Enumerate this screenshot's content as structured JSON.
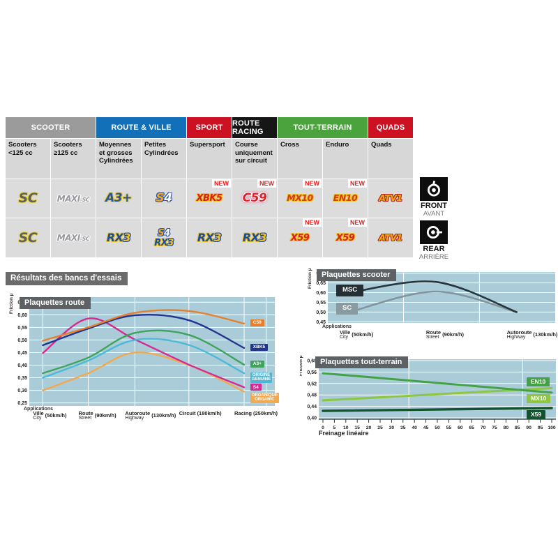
{
  "table": {
    "new_label": "NEW",
    "categories": [
      {
        "id": "scooter",
        "label": "SCOOTER",
        "color": "#9b9b9b",
        "span": 2
      },
      {
        "id": "route-ville",
        "label": "ROUTE & VILLE",
        "color": "#1170b8",
        "span": 2
      },
      {
        "id": "sport",
        "label": "SPORT",
        "color": "#cc1122",
        "span": 1
      },
      {
        "id": "route-racing",
        "label": "ROUTE RACING",
        "color": "#161616",
        "span": 1
      },
      {
        "id": "tout-terrain",
        "label": "TOUT-TERRAIN",
        "color": "#4aa33c",
        "span": 2
      },
      {
        "id": "quads",
        "label": "QUADS",
        "color": "#cc1122",
        "span": 1
      }
    ],
    "subheaders": [
      "Scooters\n<125 cc",
      "Scooters\n≥125 cc",
      "Moyennes\net grosses\nCylindrées",
      "Petites\nCylindrées",
      "Supersport",
      "Course\nuniquement\nsur circuit",
      "Cross",
      "Enduro",
      "Quads"
    ],
    "front_row": [
      {
        "new": false,
        "badges": [
          {
            "id": "sc",
            "parts": [
              {
                "t": "SC",
                "c": "p-sc"
              }
            ]
          }
        ]
      },
      {
        "new": false,
        "badges": [
          {
            "id": "maxi-sc",
            "parts": [
              {
                "t": "MAXI",
                "c": "p-maxi"
              },
              {
                "t": "-SC",
                "c": "p-maxisub"
              }
            ]
          }
        ]
      },
      {
        "new": false,
        "badges": [
          {
            "id": "a3plus",
            "parts": [
              {
                "t": "A3+",
                "c": "p-a3"
              }
            ]
          }
        ]
      },
      {
        "new": false,
        "badges": [
          {
            "id": "s4",
            "parts": [
              {
                "t": "S",
                "c": "p-s4s"
              },
              {
                "t": "4",
                "c": "p-s4n"
              }
            ]
          }
        ]
      },
      {
        "new": true,
        "badges": [
          {
            "id": "xbk5",
            "parts": [
              {
                "t": "XBK5",
                "c": "p-xbk"
              }
            ]
          }
        ]
      },
      {
        "new": true,
        "badges": [
          {
            "id": "c59",
            "parts": [
              {
                "t": "C59",
                "c": "p-c59"
              }
            ]
          }
        ]
      },
      {
        "new": true,
        "badges": [
          {
            "id": "mx10",
            "parts": [
              {
                "t": "MX10",
                "c": "p-offroad"
              }
            ]
          }
        ]
      },
      {
        "new": true,
        "badges": [
          {
            "id": "en10",
            "parts": [
              {
                "t": "EN10",
                "c": "p-offroad"
              }
            ]
          }
        ]
      },
      {
        "new": false,
        "badges": [
          {
            "id": "atv1",
            "parts": [
              {
                "t": "ATV1",
                "c": "p-atv"
              }
            ]
          }
        ]
      }
    ],
    "rear_row": [
      {
        "new": false,
        "badges": [
          {
            "id": "sc",
            "parts": [
              {
                "t": "SC",
                "c": "p-sc"
              }
            ]
          }
        ]
      },
      {
        "new": false,
        "badges": [
          {
            "id": "maxi-sc",
            "parts": [
              {
                "t": "MAXI",
                "c": "p-maxi"
              },
              {
                "t": "-SC",
                "c": "p-maxisub"
              }
            ]
          }
        ]
      },
      {
        "new": false,
        "badges": [
          {
            "id": "rx3",
            "parts": [
              {
                "t": "RX",
                "c": "p-rx"
              },
              {
                "t": "3",
                "c": "p-rx3n"
              }
            ]
          }
        ]
      },
      {
        "new": false,
        "badges": [
          {
            "id": "s4",
            "small": true,
            "parts": [
              {
                "t": "S",
                "c": "p-s4s"
              },
              {
                "t": "4",
                "c": "p-s4n"
              }
            ]
          },
          {
            "id": "rx3",
            "small": true,
            "parts": [
              {
                "t": "RX",
                "c": "p-rx"
              },
              {
                "t": "3",
                "c": "p-rx3n"
              }
            ]
          }
        ]
      },
      {
        "new": false,
        "badges": [
          {
            "id": "rx3",
            "parts": [
              {
                "t": "RX",
                "c": "p-rx"
              },
              {
                "t": "3",
                "c": "p-rx3n"
              }
            ]
          }
        ]
      },
      {
        "new": false,
        "badges": [
          {
            "id": "rx3",
            "parts": [
              {
                "t": "RX",
                "c": "p-rx"
              },
              {
                "t": "3",
                "c": "p-rx3n"
              }
            ]
          }
        ]
      },
      {
        "new": true,
        "badges": [
          {
            "id": "x59",
            "parts": [
              {
                "t": "X59",
                "c": "p-x59"
              }
            ]
          }
        ]
      },
      {
        "new": true,
        "badges": [
          {
            "id": "x59",
            "parts": [
              {
                "t": "X59",
                "c": "p-x59"
              }
            ]
          }
        ]
      },
      {
        "new": false,
        "badges": [
          {
            "id": "atv1",
            "parts": [
              {
                "t": "ATV1",
                "c": "p-atv"
              }
            ]
          }
        ]
      }
    ],
    "front_label": {
      "title": "FRONT",
      "subtitle": "AVANT"
    },
    "rear_label": {
      "title": "REAR",
      "subtitle": "ARRIÈRE"
    }
  },
  "results_title": "Résultats des bancs d'essais",
  "chart_data": [
    {
      "id": "route",
      "type": "line",
      "title": "Plaquettes route",
      "ylabel": "Friction µ",
      "xlabel_header": "Applications",
      "ylim": [
        0.25,
        0.65
      ],
      "yticks": [
        0.65,
        0.6,
        0.55,
        0.5,
        0.45,
        0.4,
        0.35,
        0.3,
        0.25
      ],
      "categories": [
        {
          "main": "Ville",
          "sub": "City",
          "speed": "(50km/h)"
        },
        {
          "main": "Route",
          "sub": "Street",
          "speed": "(90km/h)"
        },
        {
          "main": "Autoroute",
          "sub": "Highway",
          "speed": "(130km/h)"
        },
        {
          "main": "Circuit",
          "sub": "",
          "speed": "(180km/h)"
        },
        {
          "main": "Racing",
          "sub": "",
          "speed": "(250km/h)"
        }
      ],
      "series": [
        {
          "name": "C59",
          "color": "#e87f2b",
          "values": [
            0.497,
            0.55,
            0.608,
            0.615,
            0.565
          ],
          "label_lines": [
            "C59"
          ],
          "label_y": 0.565
        },
        {
          "name": "XBK5",
          "color": "#25348f",
          "values": [
            0.479,
            0.545,
            0.598,
            0.578,
            0.468
          ],
          "label_lines": [
            "XBK5"
          ],
          "label_y": 0.468
        },
        {
          "name": "A3+",
          "color": "#3fa35c",
          "values": [
            0.368,
            0.43,
            0.528,
            0.52,
            0.402
          ],
          "label_lines": [
            "A3+"
          ],
          "label_y": 0.402
        },
        {
          "name": "ORIGINE",
          "color": "#4db9d8",
          "values": [
            0.35,
            0.418,
            0.5,
            0.48,
            0.368
          ],
          "label_lines": [
            "ORIGINE",
            "GENUINE"
          ],
          "label_y": 0.352
        },
        {
          "name": "S4",
          "color": "#d62a93",
          "values": [
            0.448,
            0.585,
            0.502,
            0.402,
            0.312
          ],
          "label_lines": [
            "S4"
          ],
          "label_y": 0.31
        },
        {
          "name": "ORGANIQUE",
          "color": "#f2a94f",
          "values": [
            0.3,
            0.368,
            0.45,
            0.4,
            0.295
          ],
          "label_lines": [
            "ORGANIQUE",
            "ORGANIC"
          ],
          "label_y": 0.272
        }
      ]
    },
    {
      "id": "scooter",
      "type": "line",
      "title": "Plaquettes scooter",
      "ylabel": "Friction µ",
      "xlabel_header": "Applications",
      "ylim": [
        0.45,
        0.7
      ],
      "yticks": [
        0.7,
        0.65,
        0.6,
        0.55,
        0.5,
        0.45
      ],
      "categories": [
        {
          "main": "Ville",
          "sub": "City",
          "speed": "(50km/h)"
        },
        {
          "main": "Route",
          "sub": "Street",
          "speed": "(90km/h)"
        },
        {
          "main": "Autoroute",
          "sub": "Highway",
          "speed": "(130km/h)"
        }
      ],
      "series": [
        {
          "name": "MSC",
          "color": "#28363c",
          "values": [
            0.6,
            0.655,
            0.5
          ],
          "label_lines": [
            "MSC"
          ],
          "label_y": 0.612,
          "chip_bg": "#232f35"
        },
        {
          "name": "SC",
          "color": "#82959c",
          "values": [
            0.5,
            0.605,
            0.5
          ],
          "label_lines": [
            "SC"
          ],
          "label_y": 0.518,
          "chip_bg": "#8a9aa1"
        }
      ]
    },
    {
      "id": "tout-terrain",
      "type": "line",
      "title": "Plaquettes tout-terrain",
      "ylabel": "Friction µ",
      "xlabel": "Freinage linéaire",
      "ylim": [
        0.4,
        0.6
      ],
      "yticks": [
        0.6,
        0.56,
        0.52,
        0.48,
        0.44,
        0.4
      ],
      "xlim": [
        0,
        100
      ],
      "xticks": [
        0,
        5,
        10,
        15,
        20,
        25,
        30,
        35,
        40,
        45,
        50,
        55,
        60,
        65,
        70,
        75,
        80,
        85,
        90,
        95,
        100
      ],
      "series": [
        {
          "name": "EN10",
          "color": "#45a244",
          "points": [
            [
              0,
              0.556
            ],
            [
              100,
              0.488
            ]
          ],
          "label_lines": [
            "EN10"
          ],
          "label_y": 0.527
        },
        {
          "name": "MX10",
          "color": "#8dc63f",
          "points": [
            [
              0,
              0.461
            ],
            [
              100,
              0.504
            ]
          ],
          "label_lines": [
            "MX10"
          ],
          "label_y": 0.468
        },
        {
          "name": "X59",
          "color": "#14522f",
          "points": [
            [
              0,
              0.424
            ],
            [
              100,
              0.434
            ]
          ],
          "label_lines": [
            "X59"
          ],
          "label_y": 0.413,
          "width": 3.4
        }
      ]
    }
  ]
}
